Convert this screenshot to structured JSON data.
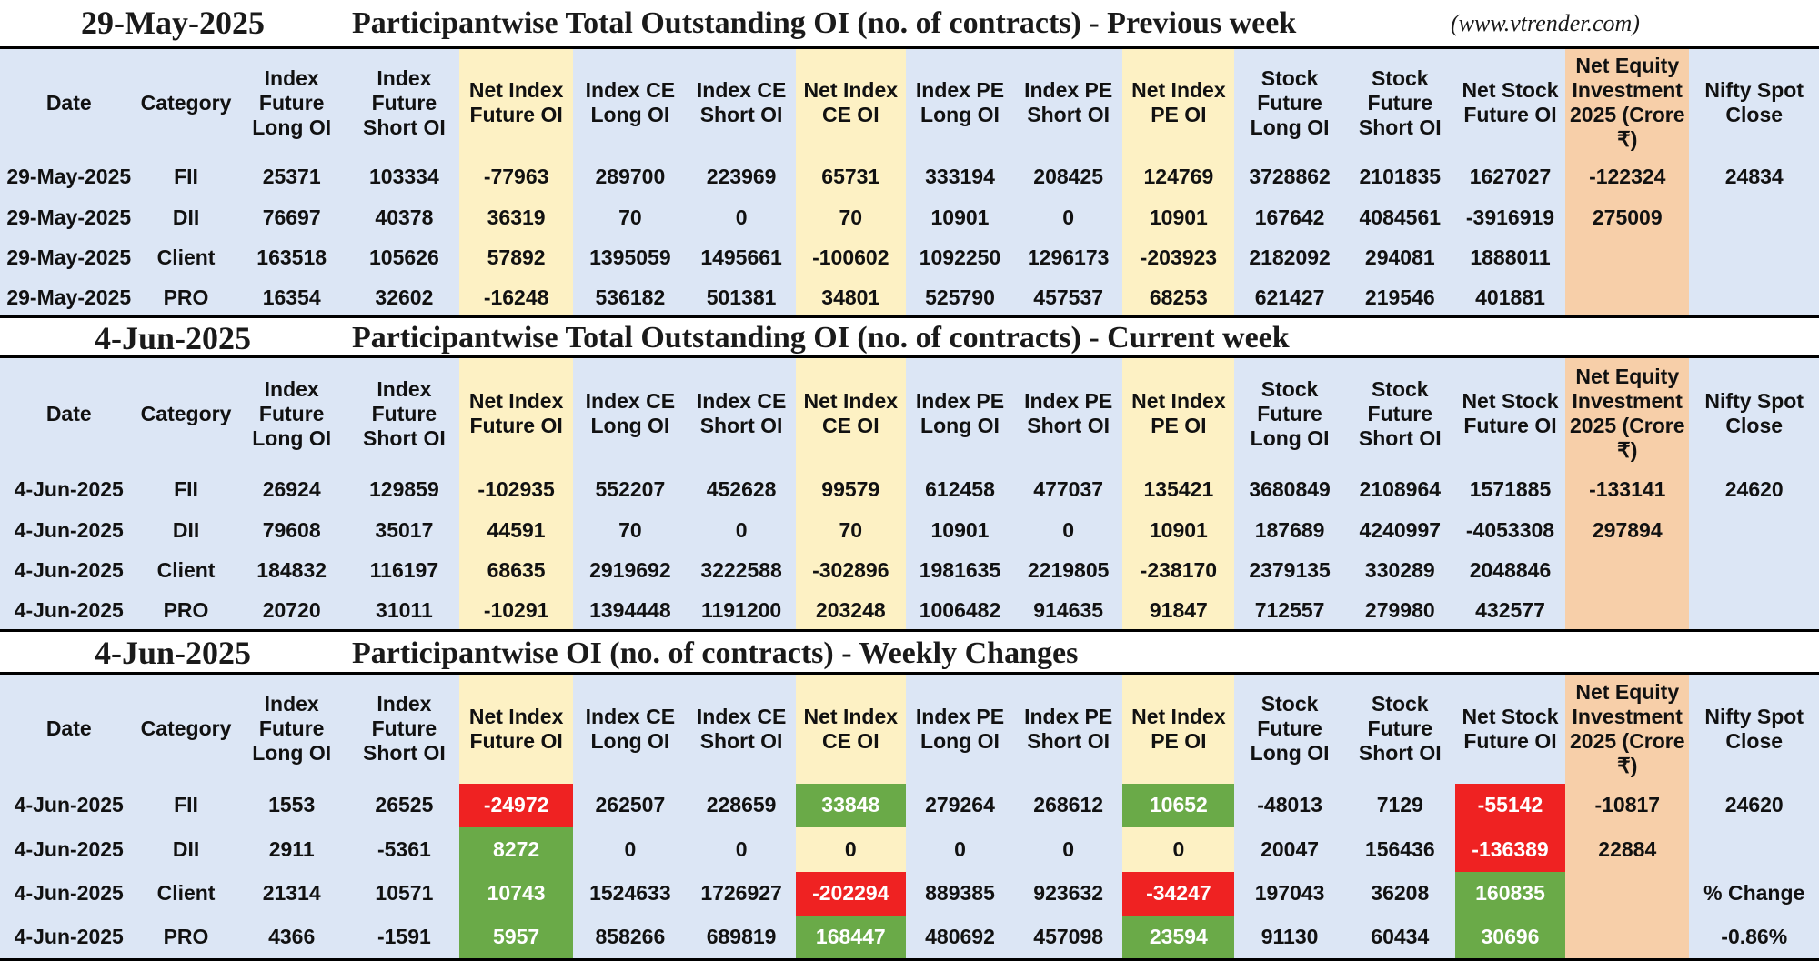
{
  "site": "(www.vtrender.com)",
  "headers": [
    "Date",
    "Category",
    "Index Future Long OI",
    "Index Future Short OI",
    "Net Index Future OI",
    "Index CE Long OI",
    "Index CE Short OI",
    "Net Index CE OI",
    "Index PE Long OI",
    "Index PE Short OI",
    "Net Index PE OI",
    "Stock Future Long OI",
    "Stock Future Short OI",
    "Net Stock Future OI",
    "Net Equity Investment 2025 (Crore ₹)",
    "Nifty Spot Close"
  ],
  "sections": [
    {
      "date": "29-May-2025",
      "title": "Participantwise Total Outstanding OI (no. of contracts) - Previous week",
      "rows": [
        {
          "date": "29-May-2025",
          "category": "FII",
          "v": [
            "25371",
            "103334",
            "-77963",
            "289700",
            "223969",
            "65731",
            "333194",
            "208425",
            "124769",
            "3728862",
            "2101835",
            "1627027",
            "-122324"
          ]
        },
        {
          "date": "29-May-2025",
          "category": "DII",
          "v": [
            "76697",
            "40378",
            "36319",
            "70",
            "0",
            "70",
            "10901",
            "0",
            "10901",
            "167642",
            "4084561",
            "-3916919",
            "275009"
          ]
        },
        {
          "date": "29-May-2025",
          "category": "Client",
          "v": [
            "163518",
            "105626",
            "57892",
            "1395059",
            "1495661",
            "-100602",
            "1092250",
            "1296173",
            "-203923",
            "2182092",
            "294081",
            "1888011",
            ""
          ]
        },
        {
          "date": "29-May-2025",
          "category": "PRO",
          "v": [
            "16354",
            "32602",
            "-16248",
            "536182",
            "501381",
            "34801",
            "525790",
            "457537",
            "68253",
            "621427",
            "219546",
            "401881",
            ""
          ]
        }
      ],
      "nifty": [
        "24834",
        "",
        "",
        ""
      ]
    },
    {
      "date": "4-Jun-2025",
      "title": "Participantwise Total Outstanding OI (no. of contracts) - Current week",
      "rows": [
        {
          "date": "4-Jun-2025",
          "category": "FII",
          "v": [
            "26924",
            "129859",
            "-102935",
            "552207",
            "452628",
            "99579",
            "612458",
            "477037",
            "135421",
            "3680849",
            "2108964",
            "1571885",
            "-133141"
          ]
        },
        {
          "date": "4-Jun-2025",
          "category": "DII",
          "v": [
            "79608",
            "35017",
            "44591",
            "70",
            "0",
            "70",
            "10901",
            "0",
            "10901",
            "187689",
            "4240997",
            "-4053308",
            "297894"
          ]
        },
        {
          "date": "4-Jun-2025",
          "category": "Client",
          "v": [
            "184832",
            "116197",
            "68635",
            "2919692",
            "3222588",
            "-302896",
            "1981635",
            "2219805",
            "-238170",
            "2379135",
            "330289",
            "2048846",
            ""
          ]
        },
        {
          "date": "4-Jun-2025",
          "category": "PRO",
          "v": [
            "20720",
            "31011",
            "-10291",
            "1394448",
            "1191200",
            "203248",
            "1006482",
            "914635",
            "91847",
            "712557",
            "279980",
            "432577",
            ""
          ]
        }
      ],
      "nifty": [
        "24620",
        "",
        "",
        ""
      ]
    },
    {
      "date": "4-Jun-2025",
      "title": "Participantwise OI (no. of contracts) - Weekly Changes",
      "rows": [
        {
          "date": "4-Jun-2025",
          "category": "FII",
          "v": [
            "1553",
            "26525",
            "-24972",
            "262507",
            "228659",
            "33848",
            "279264",
            "268612",
            "10652",
            "-48013",
            "7129",
            "-55142",
            "-10817"
          ]
        },
        {
          "date": "4-Jun-2025",
          "category": "DII",
          "v": [
            "2911",
            "-5361",
            "8272",
            "0",
            "0",
            "0",
            "0",
            "0",
            "0",
            "20047",
            "156436",
            "-136389",
            "22884"
          ]
        },
        {
          "date": "4-Jun-2025",
          "category": "Client",
          "v": [
            "21314",
            "10571",
            "10743",
            "1524633",
            "1726927",
            "-202294",
            "889385",
            "923632",
            "-34247",
            "197043",
            "36208",
            "160835",
            ""
          ]
        },
        {
          "date": "4-Jun-2025",
          "category": "PRO",
          "v": [
            "4366",
            "-1591",
            "5957",
            "858266",
            "689819",
            "168447",
            "480692",
            "457098",
            "23594",
            "91130",
            "60434",
            "30696",
            ""
          ]
        }
      ],
      "nifty": [
        "24620",
        "",
        "% Change",
        "-0.86%"
      ]
    }
  ],
  "colors": {
    "header_bg": "#dce6f5",
    "highlight_yellow": "#fdf1c4",
    "highlight_orange": "#f7cfa9",
    "positive": "#2f7a2a",
    "negative": "#d62020",
    "box_red": "#ef2222",
    "box_green": "#6aaa48"
  }
}
